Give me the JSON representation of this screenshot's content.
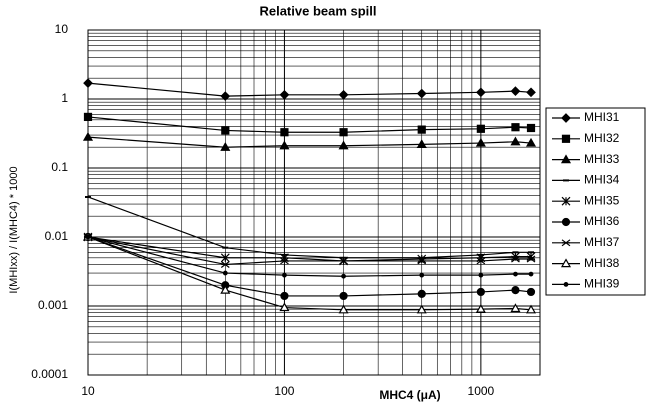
{
  "chart_data": {
    "type": "line",
    "title": "Relative beam spill",
    "xlabel": "MHC4 (μA)",
    "ylabel": "I(MHIxx) / I(MHC4) * 1000",
    "x": [
      10,
      50,
      100,
      200,
      500,
      1000,
      1500,
      1800
    ],
    "xlog": true,
    "ylog": true,
    "grid": true,
    "legend": "right",
    "xlim": [
      10,
      2000
    ],
    "ylim": [
      0.0001,
      10
    ],
    "xticks": [
      10,
      100,
      1000
    ],
    "yticks": [
      0.0001,
      0.001,
      0.01,
      0.1,
      1,
      10
    ],
    "series": [
      {
        "name": "MHI31",
        "color": "#000000",
        "marker": "diamond",
        "values": [
          1.7,
          1.1,
          1.15,
          1.15,
          1.2,
          1.25,
          1.3,
          1.25
        ]
      },
      {
        "name": "MHI32",
        "color": "#000000",
        "marker": "square",
        "values": [
          0.55,
          0.35,
          0.33,
          0.33,
          0.36,
          0.37,
          0.39,
          0.38
        ]
      },
      {
        "name": "MHI33",
        "color": "#000000",
        "marker": "triangle",
        "values": [
          0.28,
          0.2,
          0.21,
          0.21,
          0.22,
          0.23,
          0.24,
          0.23
        ]
      },
      {
        "name": "MHI34",
        "color": "#000000",
        "marker": "dash",
        "values": [
          0.038,
          0.007,
          0.0055,
          0.005,
          0.005,
          0.0055,
          0.006,
          0.006
        ]
      },
      {
        "name": "MHI35",
        "color": "#000000",
        "marker": "asterisk",
        "values": [
          0.01,
          0.005,
          0.005,
          0.0045,
          0.0048,
          0.005,
          0.0052,
          0.0052
        ]
      },
      {
        "name": "MHI36",
        "color": "#000000",
        "marker": "circle",
        "values": [
          0.01,
          0.002,
          0.0014,
          0.0014,
          0.0015,
          0.0016,
          0.0017,
          0.0016
        ]
      },
      {
        "name": "MHI37",
        "color": "#000000",
        "marker": "star",
        "values": [
          0.01,
          0.004,
          0.0045,
          0.0045,
          0.0045,
          0.0045,
          0.0048,
          0.0048
        ]
      },
      {
        "name": "MHI38",
        "color": "#000000",
        "marker": "open-triangle",
        "values": [
          0.01,
          0.0017,
          0.00095,
          0.00088,
          0.00088,
          0.0009,
          0.00092,
          0.00088
        ]
      },
      {
        "name": "MHI39",
        "color": "#000000",
        "marker": "dot",
        "values": [
          0.01,
          0.003,
          0.0028,
          0.0027,
          0.0028,
          0.0028,
          0.0029,
          0.0029
        ]
      }
    ]
  }
}
